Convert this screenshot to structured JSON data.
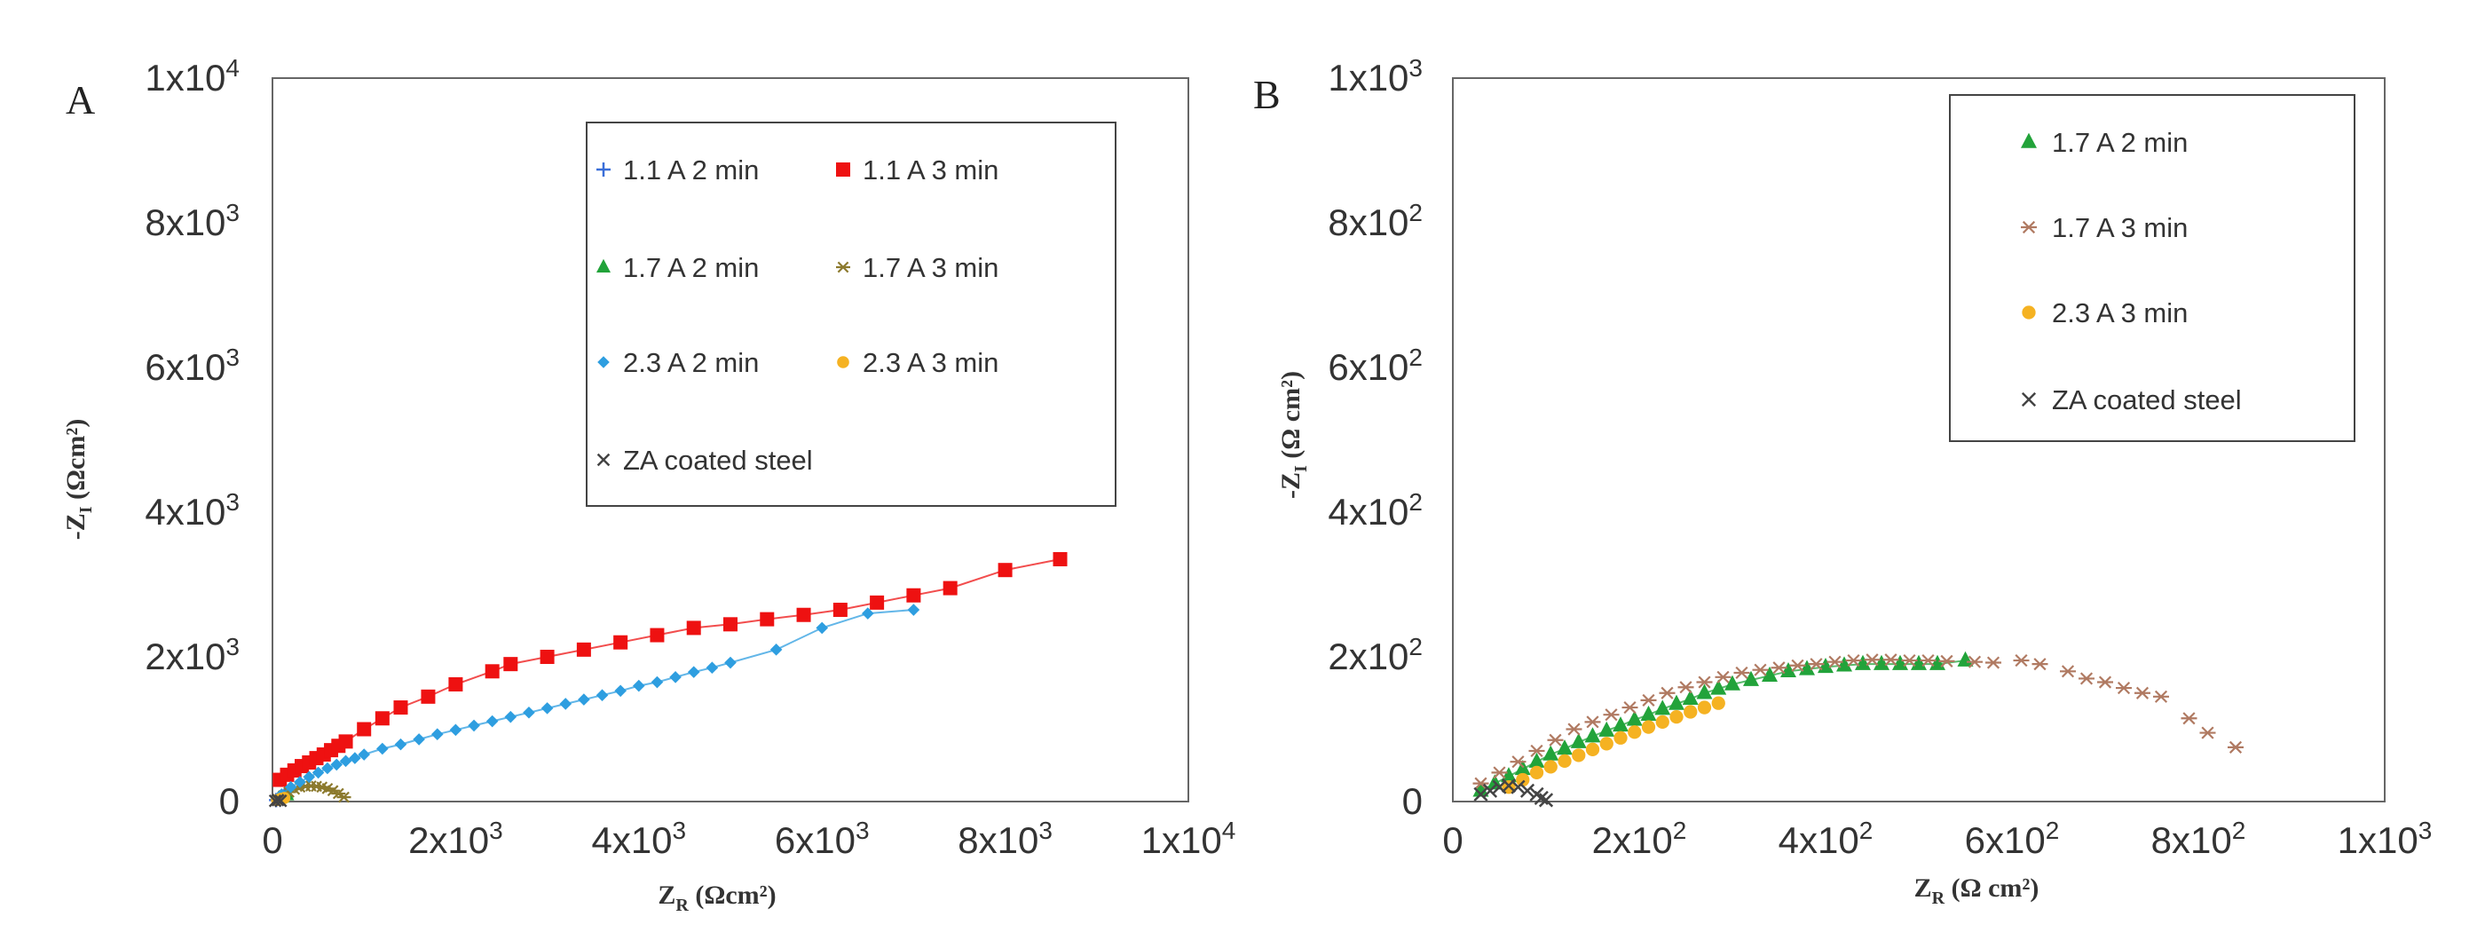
{
  "chart_data": [
    {
      "panel": "A",
      "type": "scatter",
      "xlabel": "Z_R (Ωcm²)",
      "ylabel": "-Z_I (Ωcm²)",
      "xlim": [
        0,
        10000
      ],
      "ylim": [
        0,
        10000
      ],
      "xticks": [
        {
          "value": 0,
          "mant": "0",
          "exp": ""
        },
        {
          "value": 2000,
          "mant": "2x10",
          "exp": "3"
        },
        {
          "value": 4000,
          "mant": "4x10",
          "exp": "3"
        },
        {
          "value": 6000,
          "mant": "6x10",
          "exp": "3"
        },
        {
          "value": 8000,
          "mant": "8x10",
          "exp": "3"
        },
        {
          "value": 10000,
          "mant": "1x10",
          "exp": "4"
        }
      ],
      "yticks": [
        {
          "value": 0,
          "mant": "0",
          "exp": ""
        },
        {
          "value": 2000,
          "mant": "2x10",
          "exp": "3"
        },
        {
          "value": 4000,
          "mant": "4x10",
          "exp": "3"
        },
        {
          "value": 6000,
          "mant": "6x10",
          "exp": "3"
        },
        {
          "value": 8000,
          "mant": "8x10",
          "exp": "3"
        },
        {
          "value": 10000,
          "mant": "1x10",
          "exp": "4"
        }
      ],
      "legend_position": "top-right",
      "series": [
        {
          "name": "1.1 A 2 min",
          "marker": "plus",
          "color": "#3a6ed8",
          "x": [
            40,
            70,
            100,
            130
          ],
          "y": [
            20,
            40,
            60,
            80
          ]
        },
        {
          "name": "1.1 A 3 min",
          "marker": "square",
          "color": "#ee1111",
          "fit_line": true,
          "x": [
            80,
            160,
            240,
            320,
            400,
            480,
            560,
            640,
            720,
            800,
            1000,
            1200,
            1400,
            1700,
            2000,
            2400,
            2600,
            3000,
            3400,
            3800,
            4200,
            4600,
            5000,
            5400,
            5800,
            6200,
            6600,
            7000,
            7400,
            8000,
            8600
          ],
          "y": [
            300,
            370,
            430,
            490,
            540,
            600,
            650,
            710,
            770,
            830,
            1000,
            1150,
            1300,
            1450,
            1620,
            1800,
            1900,
            2000,
            2100,
            2200,
            2300,
            2400,
            2450,
            2520,
            2580,
            2650,
            2750,
            2850,
            2950,
            3200,
            3350
          ]
        },
        {
          "name": "1.7 A 2 min",
          "marker": "triangle",
          "color": "#22a33a",
          "x": [
            60,
            110,
            160
          ],
          "y": [
            30,
            60,
            90
          ]
        },
        {
          "name": "1.7 A 3 min",
          "marker": "asterisk",
          "color": "#8c7a2e",
          "x": [
            60,
            120,
            180,
            240,
            300,
            360,
            420,
            480,
            540,
            600,
            660,
            720,
            780
          ],
          "y": [
            30,
            80,
            130,
            170,
            200,
            210,
            215,
            210,
            200,
            180,
            150,
            110,
            60
          ]
        },
        {
          "name": "2.3 A 2 min",
          "marker": "diamond",
          "color": "#2e9ee0",
          "fit_line": true,
          "x": [
            100,
            200,
            300,
            400,
            500,
            600,
            700,
            800,
            900,
            1000,
            1200,
            1400,
            1600,
            1800,
            2000,
            2200,
            2400,
            2600,
            2800,
            3000,
            3200,
            3400,
            3600,
            3800,
            4000,
            4200,
            4400,
            4600,
            4800,
            5000,
            5500,
            6000,
            6500,
            7000
          ],
          "y": [
            100,
            200,
            270,
            340,
            400,
            460,
            510,
            560,
            600,
            650,
            730,
            790,
            860,
            930,
            990,
            1050,
            1110,
            1170,
            1230,
            1290,
            1350,
            1410,
            1470,
            1530,
            1600,
            1650,
            1720,
            1790,
            1850,
            1920,
            2100,
            2400,
            2600,
            2650
          ]
        },
        {
          "name": "2.3 A 3 min",
          "marker": "circle",
          "color": "#f5b222",
          "x": [
            50,
            90,
            130
          ],
          "y": [
            20,
            40,
            50
          ]
        },
        {
          "name": "ZA coated steel",
          "marker": "x",
          "color": "#444444",
          "x": [
            30,
            60,
            90
          ],
          "y": [
            10,
            20,
            10
          ]
        }
      ]
    },
    {
      "panel": "B",
      "type": "scatter",
      "xlabel": "Z_R (Ω cm²)",
      "ylabel": "-Z_I (Ω cm²)",
      "xlim": [
        0,
        1000
      ],
      "ylim": [
        0,
        1000
      ],
      "xticks": [
        {
          "value": 0,
          "mant": "0",
          "exp": ""
        },
        {
          "value": 200,
          "mant": "2x10",
          "exp": "2"
        },
        {
          "value": 400,
          "mant": "4x10",
          "exp": "2"
        },
        {
          "value": 600,
          "mant": "6x10",
          "exp": "2"
        },
        {
          "value": 800,
          "mant": "8x10",
          "exp": "2"
        },
        {
          "value": 1000,
          "mant": "1x10",
          "exp": "3"
        }
      ],
      "yticks": [
        {
          "value": 0,
          "mant": "0",
          "exp": ""
        },
        {
          "value": 200,
          "mant": "2x10",
          "exp": "2"
        },
        {
          "value": 400,
          "mant": "4x10",
          "exp": "2"
        },
        {
          "value": 600,
          "mant": "6x10",
          "exp": "2"
        },
        {
          "value": 800,
          "mant": "8x10",
          "exp": "2"
        },
        {
          "value": 1000,
          "mant": "1x10",
          "exp": "3"
        }
      ],
      "legend_position": "top-right",
      "series": [
        {
          "name": "1.7 A 2 min",
          "marker": "triangle",
          "color": "#22a33a",
          "fit_line": true,
          "x": [
            30,
            45,
            60,
            75,
            90,
            105,
            120,
            135,
            150,
            165,
            180,
            195,
            210,
            225,
            240,
            255,
            270,
            285,
            300,
            320,
            340,
            360,
            380,
            400,
            420,
            440,
            460,
            480,
            500,
            520,
            550
          ],
          "y": [
            15,
            25,
            35,
            45,
            55,
            65,
            73,
            82,
            90,
            98,
            105,
            113,
            120,
            128,
            135,
            142,
            150,
            156,
            162,
            168,
            174,
            180,
            183,
            186,
            188,
            190,
            190,
            190,
            190,
            190,
            195
          ]
        },
        {
          "name": "1.7 A 3 min",
          "marker": "asterisk",
          "color": "#b07a62",
          "x": [
            30,
            50,
            70,
            90,
            110,
            130,
            150,
            170,
            190,
            210,
            230,
            250,
            270,
            290,
            310,
            330,
            350,
            370,
            390,
            410,
            430,
            450,
            470,
            490,
            510,
            530,
            560,
            580,
            610,
            630,
            660,
            680,
            700,
            720,
            740,
            760,
            790,
            810,
            840
          ],
          "y": [
            25,
            40,
            55,
            70,
            85,
            100,
            110,
            120,
            130,
            140,
            150,
            158,
            165,
            172,
            178,
            182,
            185,
            188,
            190,
            193,
            195,
            196,
            196,
            195,
            195,
            194,
            193,
            192,
            195,
            190,
            180,
            170,
            165,
            157,
            150,
            145,
            115,
            95,
            75
          ]
        },
        {
          "name": "2.3 A 3 min",
          "marker": "circle",
          "color": "#f5b222",
          "x": [
            60,
            75,
            90,
            105,
            120,
            135,
            150,
            165,
            180,
            195,
            210,
            225,
            240,
            255,
            270,
            285
          ],
          "y": [
            20,
            30,
            40,
            48,
            56,
            64,
            72,
            80,
            88,
            96,
            103,
            110,
            117,
            124,
            130,
            136
          ]
        },
        {
          "name": "ZA coated steel",
          "marker": "x",
          "color": "#444444",
          "x": [
            30,
            40,
            50,
            60,
            70,
            80,
            90,
            95,
            100
          ],
          "y": [
            10,
            15,
            20,
            22,
            20,
            15,
            10,
            5,
            2
          ]
        }
      ]
    }
  ]
}
